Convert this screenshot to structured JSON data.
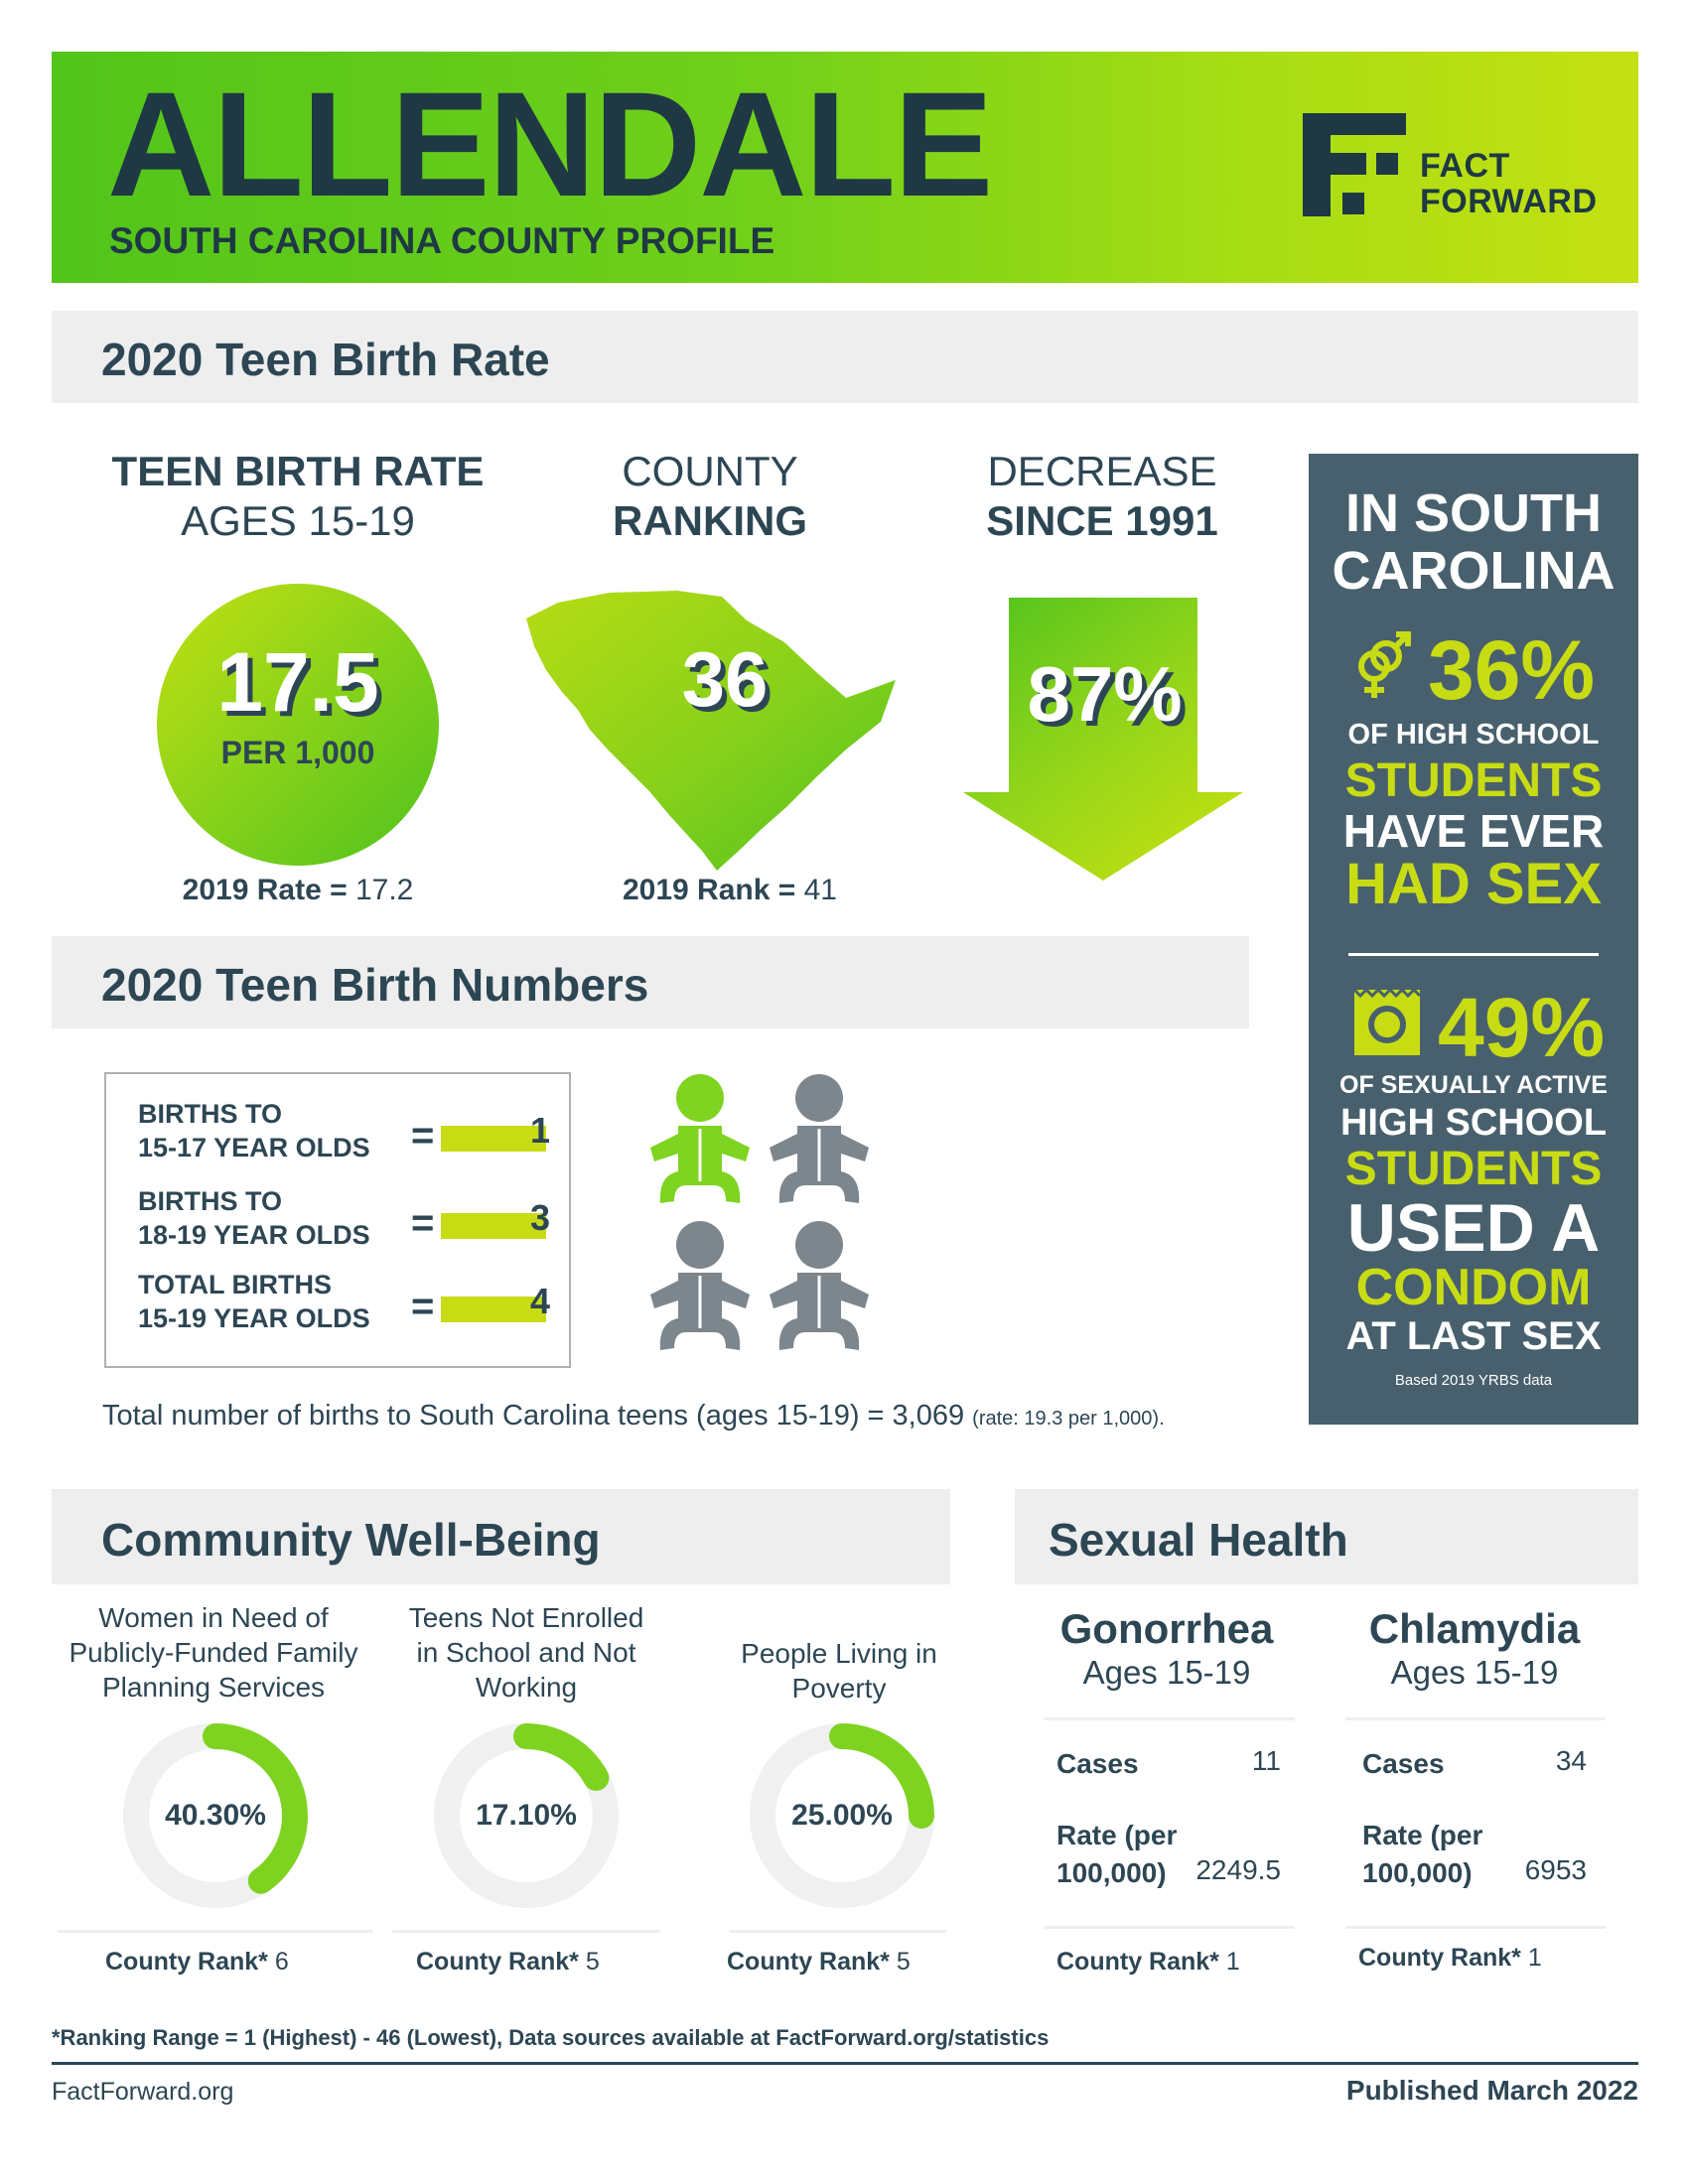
{
  "header": {
    "county": "ALLENDALE",
    "subtitle": "SOUTH CAROLINA COUNTY PROFILE",
    "logo_line1": "FACT",
    "logo_line2": "FORWARD"
  },
  "teen_birth_rate": {
    "section_title": "2020 Teen Birth Rate",
    "rate": {
      "heading_line1": "TEEN BIRTH RATE",
      "heading_line2": "AGES 15-19",
      "value": "17.5",
      "unit": "PER 1,000",
      "prior_label": "2019 Rate =",
      "prior_value": "17.2"
    },
    "ranking": {
      "heading_line1": "COUNTY",
      "heading_line2": "RANKING",
      "value": "36",
      "prior_label": "2019 Rank =",
      "prior_value": "41"
    },
    "decrease": {
      "heading_line1": "DECREASE",
      "heading_line2": "SINCE 1991",
      "value": "87%"
    }
  },
  "side_panel": {
    "title_line1": "IN SOUTH",
    "title_line2": "CAROLINA",
    "stat1_value": "36%",
    "stat1_line1": "OF HIGH SCHOOL",
    "stat1_line2": "STUDENTS",
    "stat1_line3": "HAVE EVER",
    "stat1_line4": "HAD SEX",
    "stat2_value": "49%",
    "stat2_line1": "OF SEXUALLY ACTIVE",
    "stat2_line2": "HIGH SCHOOL",
    "stat2_line3": "STUDENTS",
    "stat2_line4": "USED A",
    "stat2_line5": "CONDOM",
    "stat2_line6": "AT LAST SEX",
    "source": "Based 2019 YRBS data",
    "icon1": "gender-symbols-icon",
    "icon2": "condom-wrapper-icon"
  },
  "birth_numbers": {
    "section_title": "2020 Teen Birth Numbers",
    "rows": [
      {
        "line1": "BIRTHS TO",
        "line2": "15-17 YEAR OLDS",
        "eq": "=",
        "value": "1"
      },
      {
        "line1": "BIRTHS TO",
        "line2": "18-19 YEAR OLDS",
        "eq": "=",
        "value": "3"
      },
      {
        "line1": "TOTAL BIRTHS",
        "line2": "15-19 YEAR OLDS",
        "eq": "=",
        "value": "4"
      }
    ],
    "state_total_text": "Total number of births to South Carolina teens (ages 15-19) = 3,069",
    "state_rate_text": "(rate: 19.3 per 1,000)."
  },
  "community": {
    "section_title": "Community Well-Being",
    "items": [
      {
        "title1": "Women in Need of",
        "title2": "Publicly-Funded Family",
        "title3": "Planning Services",
        "value": "40.30%",
        "pct": 40.3,
        "rank_label": "County Rank*",
        "rank": "6"
      },
      {
        "title1": "Teens Not Enrolled",
        "title2": "in School and Not",
        "title3": "Working",
        "value": "17.10%",
        "pct": 17.1,
        "rank_label": "County Rank*",
        "rank": "5"
      },
      {
        "title1": "People Living in",
        "title2": "Poverty",
        "title3": "",
        "value": "25.00%",
        "pct": 25.0,
        "rank_label": "County Rank*",
        "rank": "5"
      }
    ],
    "accent": "#7ed321",
    "track": "#f0f0f0"
  },
  "sexual_health": {
    "section_title": "Sexual Health",
    "items": [
      {
        "name": "Gonorrhea",
        "ages": "Ages 15-19",
        "cases_label": "Cases",
        "cases": "11",
        "rate_label1": "Rate (per",
        "rate_label2": "100,000)",
        "rate": "2249.5",
        "rank_label": "County Rank*",
        "rank": "1"
      },
      {
        "name": "Chlamydia",
        "ages": "Ages 15-19",
        "cases_label": "Cases",
        "cases": "34",
        "rate_label1": "Rate (per",
        "rate_label2": "100,000)",
        "rate": "6953",
        "rank_label": "County Rank*",
        "rank": "1"
      }
    ]
  },
  "footer": {
    "footnote": "*Ranking Range = 1 (Highest) - 46 (Lowest), Data sources available at FactForward.org/statistics",
    "site": "FactForward.org",
    "published": "Published March 2022"
  },
  "colors": {
    "navy": "#2d4654",
    "lime": "#c4db12",
    "green": "#52c41a",
    "panel": "#48606d"
  }
}
